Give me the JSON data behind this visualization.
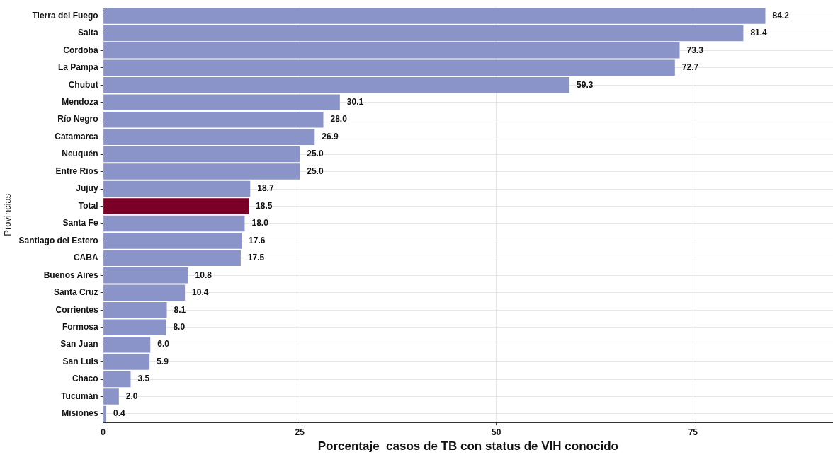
{
  "chart_data": {
    "type": "bar",
    "orientation": "horizontal",
    "xlabel": "Porcentaje  casos de TB con status de VIH conocido",
    "ylabel": "Provincias",
    "categories": [
      "Tierra del Fuego",
      "Salta",
      "Córdoba",
      "La Pampa",
      "Chubut",
      "Mendoza",
      "Río Negro",
      "Catamarca",
      "Neuquén",
      "Entre Rios",
      "Jujuy",
      "Total",
      "Santa Fe",
      "Santiago del Estero",
      "CABA",
      "Buenos Aires",
      "Santa Cruz",
      "Corrientes",
      "Formosa",
      "San Juan",
      "San Luis",
      "Chaco",
      "Tucumán",
      "Misiones"
    ],
    "values": [
      84.2,
      81.4,
      73.3,
      72.7,
      59.3,
      30.1,
      28.0,
      26.9,
      25.0,
      25.0,
      18.7,
      18.5,
      18.0,
      17.6,
      17.5,
      10.8,
      10.4,
      8.1,
      8.0,
      6.0,
      5.9,
      3.5,
      2.0,
      0.4
    ],
    "value_labels": [
      "84.2",
      "81.4",
      "73.3",
      "72.7",
      "59.3",
      "30.1",
      "28.0",
      "26.9",
      "25.0",
      "25.0",
      "18.7",
      "18.5",
      "18.0",
      "17.6",
      "17.5",
      "10.8",
      "10.4",
      "8.1",
      "8.0",
      "6.0",
      "5.9",
      "3.5",
      "2.0",
      "0.4"
    ],
    "colors": [
      "#8a94c8",
      "#8a94c8",
      "#8a94c8",
      "#8a94c8",
      "#8a94c8",
      "#8a94c8",
      "#8a94c8",
      "#8a94c8",
      "#8a94c8",
      "#8a94c8",
      "#8a94c8",
      "#7b0028",
      "#8a94c8",
      "#8a94c8",
      "#8a94c8",
      "#8a94c8",
      "#8a94c8",
      "#8a94c8",
      "#8a94c8",
      "#8a94c8",
      "#8a94c8",
      "#8a94c8",
      "#8a94c8",
      "#8a94c8"
    ],
    "xlim": [
      0,
      92.8
    ],
    "xticks": [
      0,
      25,
      50,
      75
    ],
    "grid": true,
    "legend": false
  }
}
